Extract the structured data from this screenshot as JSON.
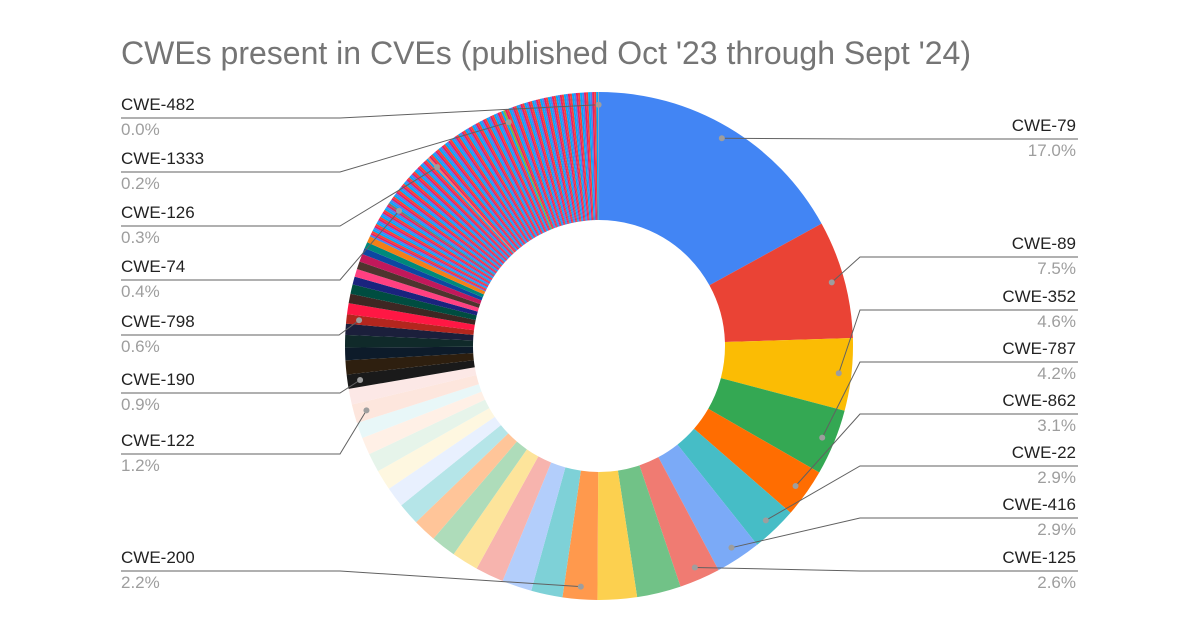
{
  "chart_data": {
    "type": "pie",
    "title": "CWEs present in CVEs (published Oct '23 through Sept '24)",
    "donut": true,
    "labeled_slices": [
      {
        "label": "CWE-79",
        "percent": 17.0,
        "percent_label": "17.0%",
        "color": "#4285f4"
      },
      {
        "label": "CWE-89",
        "percent": 7.5,
        "percent_label": "7.5%",
        "color": "#ea4335"
      },
      {
        "label": "CWE-352",
        "percent": 4.6,
        "percent_label": "4.6%",
        "color": "#fbbc04"
      },
      {
        "label": "CWE-787",
        "percent": 4.2,
        "percent_label": "4.2%",
        "color": "#34a853"
      },
      {
        "label": "CWE-862",
        "percent": 3.1,
        "percent_label": "3.1%",
        "color": "#ff6d01"
      },
      {
        "label": "CWE-22",
        "percent": 2.9,
        "percent_label": "2.9%",
        "color": "#46bdc6"
      },
      {
        "label": "CWE-416",
        "percent": 2.9,
        "percent_label": "2.9%",
        "color": "#7baaf7"
      },
      {
        "label": "CWE-125",
        "percent": 2.6,
        "percent_label": "2.6%",
        "color": "#f07b72"
      },
      {
        "label": "CWE-200",
        "percent": 2.2,
        "percent_label": "2.2%",
        "color": "#ff994d"
      },
      {
        "label": "CWE-122",
        "percent": 1.2,
        "percent_label": "1.2%",
        "color": "#fde6dd"
      },
      {
        "label": "CWE-190",
        "percent": 0.9,
        "percent_label": "0.9%",
        "color": "#1a1a1a"
      },
      {
        "label": "CWE-798",
        "percent": 0.6,
        "percent_label": "0.6%",
        "color": "#b3261e"
      },
      {
        "label": "CWE-74",
        "percent": 0.4,
        "percent_label": "0.4%",
        "color": "#8d6e63"
      },
      {
        "label": "CWE-126",
        "percent": 0.3,
        "percent_label": "0.3%",
        "color": "#e67c73"
      },
      {
        "label": "CWE-1333",
        "percent": 0.2,
        "percent_label": "0.2%",
        "color": "#7cb342"
      },
      {
        "label": "CWE-482",
        "percent": 0.0,
        "percent_label": "0.0%",
        "color": "#9e9e9e"
      }
    ],
    "unlabeled_slices": [
      {
        "percent": 2.8,
        "color": "#71c287"
      },
      {
        "percent": 2.5,
        "color": "#fcd04f"
      },
      {
        "percent": 2.0,
        "color": "#7ed1d7"
      },
      {
        "percent": 1.9,
        "color": "#b3cefb"
      },
      {
        "percent": 1.8,
        "color": "#f7b4ae"
      },
      {
        "percent": 1.7,
        "color": "#fde49b"
      },
      {
        "percent": 1.6,
        "color": "#aedcba"
      },
      {
        "percent": 1.5,
        "color": "#ffc599"
      },
      {
        "percent": 1.4,
        "color": "#b5e5e8"
      },
      {
        "percent": 1.3,
        "color": "#e8f0fe"
      },
      {
        "percent": 1.3,
        "color": "#fef7e0"
      },
      {
        "percent": 1.2,
        "color": "#e6f4ea"
      },
      {
        "percent": 1.1,
        "color": "#fff0e6"
      },
      {
        "percent": 1.0,
        "color": "#e8f7f8"
      },
      {
        "percent": 1.0,
        "color": "#fce8e6"
      },
      {
        "percent": 0.9,
        "color": "#2e1f0f"
      },
      {
        "percent": 0.8,
        "color": "#0d1b2a"
      },
      {
        "percent": 0.8,
        "color": "#102a2a"
      },
      {
        "percent": 0.7,
        "color": "#1b1f3b"
      },
      {
        "percent": 0.7,
        "color": "#ff1744"
      },
      {
        "percent": 0.6,
        "color": "#3e2723"
      },
      {
        "percent": 0.6,
        "color": "#004d40"
      },
      {
        "percent": 0.5,
        "color": "#1a237e"
      },
      {
        "percent": 0.5,
        "color": "#ff4081"
      },
      {
        "percent": 0.5,
        "color": "#4e342e"
      },
      {
        "percent": 0.5,
        "color": "#c2185b"
      },
      {
        "percent": 0.4,
        "color": "#0d47a1"
      },
      {
        "percent": 0.4,
        "color": "#00897b"
      },
      {
        "percent": 0.4,
        "color": "#f57f17"
      }
    ],
    "remainder_slice_count": 140,
    "remainder_palette": [
      "#4285f4",
      "#ea4335",
      "#fbbc04",
      "#34a853",
      "#ff6d01",
      "#46bdc6",
      "#000000",
      "#e91e63",
      "#9c27b0",
      "#795548",
      "#00bcd4",
      "#8bc34a",
      "#ffeb3b",
      "#3f51b5",
      "#f44336",
      "#607d8b",
      "#cddc39",
      "#ff9800",
      "#009688",
      "#673ab7",
      "#9e9e9e",
      "#03a9f4",
      "#ffc107",
      "#4caf50",
      "#aed581",
      "#bdbdbd",
      "#b39ddb",
      "#a1887f"
    ]
  }
}
